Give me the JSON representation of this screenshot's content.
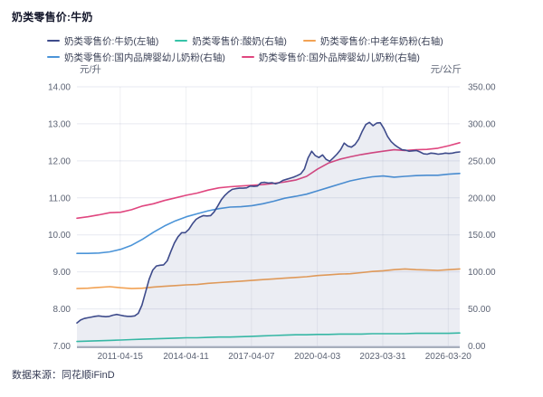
{
  "header": {
    "title": "奶类零售价:牛奶"
  },
  "footer": {
    "source_label": "数据来源：同花顺iFinD"
  },
  "chart_data": {
    "type": "line",
    "title": "奶类零售价:牛奶",
    "legend_position": "top",
    "grid": true,
    "y_left": {
      "unit": "元/升",
      "min": 7,
      "max": 14,
      "ticks": [
        14,
        13,
        12,
        11,
        10,
        9,
        8,
        7
      ]
    },
    "y_right": {
      "unit": "元/公斤",
      "min": 0,
      "max": 350,
      "ticks": [
        350,
        300,
        250,
        200,
        150,
        100,
        50,
        0
      ]
    },
    "x_axis": {
      "tick_labels": [
        "2011-04-15",
        "2014-04-11",
        "2017-04-07",
        "2020-04-03",
        "2023-03-31",
        "2026-03-20"
      ],
      "tick_positions": [
        0.113,
        0.285,
        0.456,
        0.628,
        0.799,
        0.97
      ]
    },
    "legend_rows": [
      [
        0,
        1,
        2
      ],
      [
        3,
        4
      ]
    ],
    "draw_order": [
      1,
      2,
      3,
      4,
      0
    ],
    "series": [
      {
        "name": "奶类零售价:牛奶(左轴)",
        "axis": "left",
        "color": "#3e4b8b",
        "area": true,
        "area_color": "rgba(62,76,140,0.10)",
        "values": [
          7.62,
          7.7,
          7.74,
          7.76,
          7.78,
          7.8,
          7.81,
          7.8,
          7.79,
          7.8,
          7.83,
          7.85,
          7.83,
          7.81,
          7.8,
          7.8,
          7.81,
          7.88,
          8.1,
          8.45,
          8.8,
          9.05,
          9.16,
          9.18,
          9.19,
          9.3,
          9.55,
          9.78,
          9.95,
          10.06,
          10.06,
          10.15,
          10.3,
          10.42,
          10.48,
          10.52,
          10.51,
          10.52,
          10.62,
          10.78,
          10.95,
          11.07,
          11.16,
          11.23,
          11.25,
          11.26,
          11.26,
          11.27,
          11.32,
          11.31,
          11.32,
          11.41,
          11.42,
          11.4,
          11.41,
          11.38,
          11.41,
          11.47,
          11.5,
          11.53,
          11.56,
          11.6,
          11.65,
          11.78,
          12.08,
          12.26,
          12.14,
          12.09,
          12.16,
          12.04,
          11.99,
          12.08,
          12.18,
          12.3,
          12.48,
          12.4,
          12.37,
          12.44,
          12.58,
          12.8,
          12.98,
          13.04,
          12.95,
          13.02,
          13.03,
          12.87,
          12.66,
          12.52,
          12.43,
          12.36,
          12.3,
          12.29,
          12.26,
          12.27,
          12.28,
          12.24,
          12.19,
          12.18,
          12.21,
          12.2,
          12.18,
          12.19,
          12.21,
          12.2,
          12.21,
          12.23,
          12.24
        ]
      },
      {
        "name": "奶类零售价:酸奶(右轴)",
        "axis": "right",
        "color": "#36c3a8",
        "values": [
          6,
          6.5,
          7,
          7.5,
          8,
          8.5,
          9,
          9.5,
          10,
          10.5,
          11,
          11,
          11.5,
          12,
          12,
          12.5,
          13,
          13.5,
          14,
          14.5,
          15,
          15,
          15.5,
          15.5,
          16,
          16,
          16,
          16.5,
          16.5,
          16.5,
          16.5,
          17,
          17,
          17,
          17,
          17.5
        ]
      },
      {
        "name": "奶类零售价:中老年奶粉(右轴)",
        "axis": "right",
        "color": "#f2a254",
        "values": [
          77.5,
          78,
          79,
          80,
          78.5,
          77.5,
          78,
          79.5,
          80.5,
          81.5,
          82.5,
          83,
          84.5,
          85.5,
          86.5,
          87.5,
          88.5,
          89.5,
          90.5,
          91.5,
          92.5,
          93.5,
          95,
          96,
          97,
          97.5,
          99,
          100.5,
          101.5,
          103,
          104,
          103,
          102.5,
          102,
          103,
          104
        ]
      },
      {
        "name": "奶类零售价:国内品牌婴幼儿奶粉(右轴)",
        "axis": "right",
        "color": "#4b94d8",
        "values": [
          125,
          125,
          125.5,
          127,
          130.5,
          136,
          144,
          153.5,
          162,
          169,
          174.5,
          178.5,
          182.5,
          185.5,
          187.5,
          188,
          189.5,
          192,
          195.5,
          199.5,
          202,
          205,
          209.5,
          214,
          218.5,
          223,
          226,
          228.5,
          229.5,
          228,
          229,
          230,
          230.5,
          230.5,
          232,
          233
        ]
      },
      {
        "name": "奶类零售价:国外品牌婴幼儿奶粉(右轴)",
        "axis": "right",
        "color": "#e0467f",
        "values": [
          172.5,
          174.5,
          177,
          180,
          180.5,
          184,
          189,
          192,
          196.5,
          200,
          203.5,
          206.5,
          210.5,
          213.5,
          215,
          216,
          217,
          218,
          219.5,
          221.5,
          224,
          229,
          239,
          247,
          252,
          255.5,
          258.5,
          261,
          263,
          265,
          264,
          265,
          265.5,
          267,
          270.5,
          274.5
        ]
      }
    ]
  }
}
